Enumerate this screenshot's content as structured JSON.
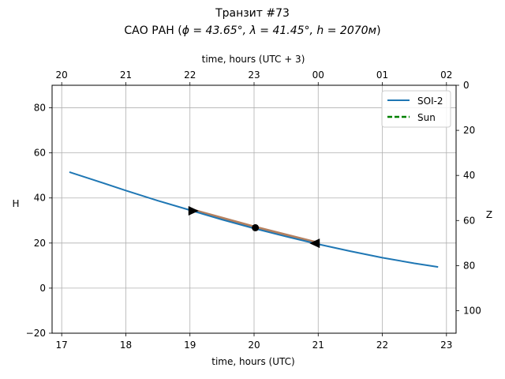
{
  "chart_data": {
    "type": "line",
    "title_line1": "Транзит #73",
    "title_line2_prefix": "САО РАН (",
    "title_line2_expr": "ϕ = 43.65°, λ = 41.45°, h = 2070м",
    "title_line2_suffix": ")",
    "xlabel": "time, hours (UTC)",
    "xlabel_top": "time, hours (UTC + 3)",
    "ylabel": "H",
    "ylabel_right": "Z",
    "xlim": [
      16.85,
      23.15
    ],
    "ylim": [
      -20,
      90
    ],
    "xticks": [
      17,
      18,
      19,
      20,
      21,
      22,
      23
    ],
    "yticks": [
      -20,
      0,
      20,
      40,
      60,
      80
    ],
    "top_ticks": [
      {
        "x": 17,
        "label": "20"
      },
      {
        "x": 18,
        "label": "21"
      },
      {
        "x": 19,
        "label": "22"
      },
      {
        "x": 20,
        "label": "23"
      },
      {
        "x": 21,
        "label": "00"
      },
      {
        "x": 22,
        "label": "01"
      },
      {
        "x": 23,
        "label": "02"
      }
    ],
    "right_ticks": [
      0,
      20,
      40,
      60,
      80,
      100
    ],
    "grid": true,
    "legend_position": "top-right",
    "series": [
      {
        "name": "SOI-2",
        "color": "#1f77b4",
        "style": "solid",
        "x": [
          17.12,
          17.5,
          18.0,
          18.5,
          19.0,
          19.5,
          20.0,
          20.5,
          21.0,
          21.5,
          22.0,
          22.5,
          22.87
        ],
        "y": [
          51.5,
          48.0,
          43.3,
          38.8,
          34.6,
          30.4,
          26.5,
          22.9,
          19.5,
          16.4,
          13.5,
          11.0,
          9.4
        ]
      },
      {
        "name": "Sun",
        "color": "#008000",
        "style": "dashed",
        "x": [],
        "y": []
      }
    ],
    "transit_band": {
      "color": "#b5805f",
      "x": [
        19.0,
        19.5,
        20.0,
        20.5,
        20.97
      ],
      "y": [
        35.0,
        31.1,
        27.2,
        23.6,
        20.2
      ]
    },
    "markers": [
      {
        "type": "start",
        "shape": "triangle-right",
        "x": 19.05,
        "y": 34.3
      },
      {
        "type": "mid",
        "shape": "circle",
        "x": 20.02,
        "y": 26.8
      },
      {
        "type": "end",
        "shape": "triangle-left",
        "x": 20.95,
        "y": 19.9
      }
    ]
  }
}
